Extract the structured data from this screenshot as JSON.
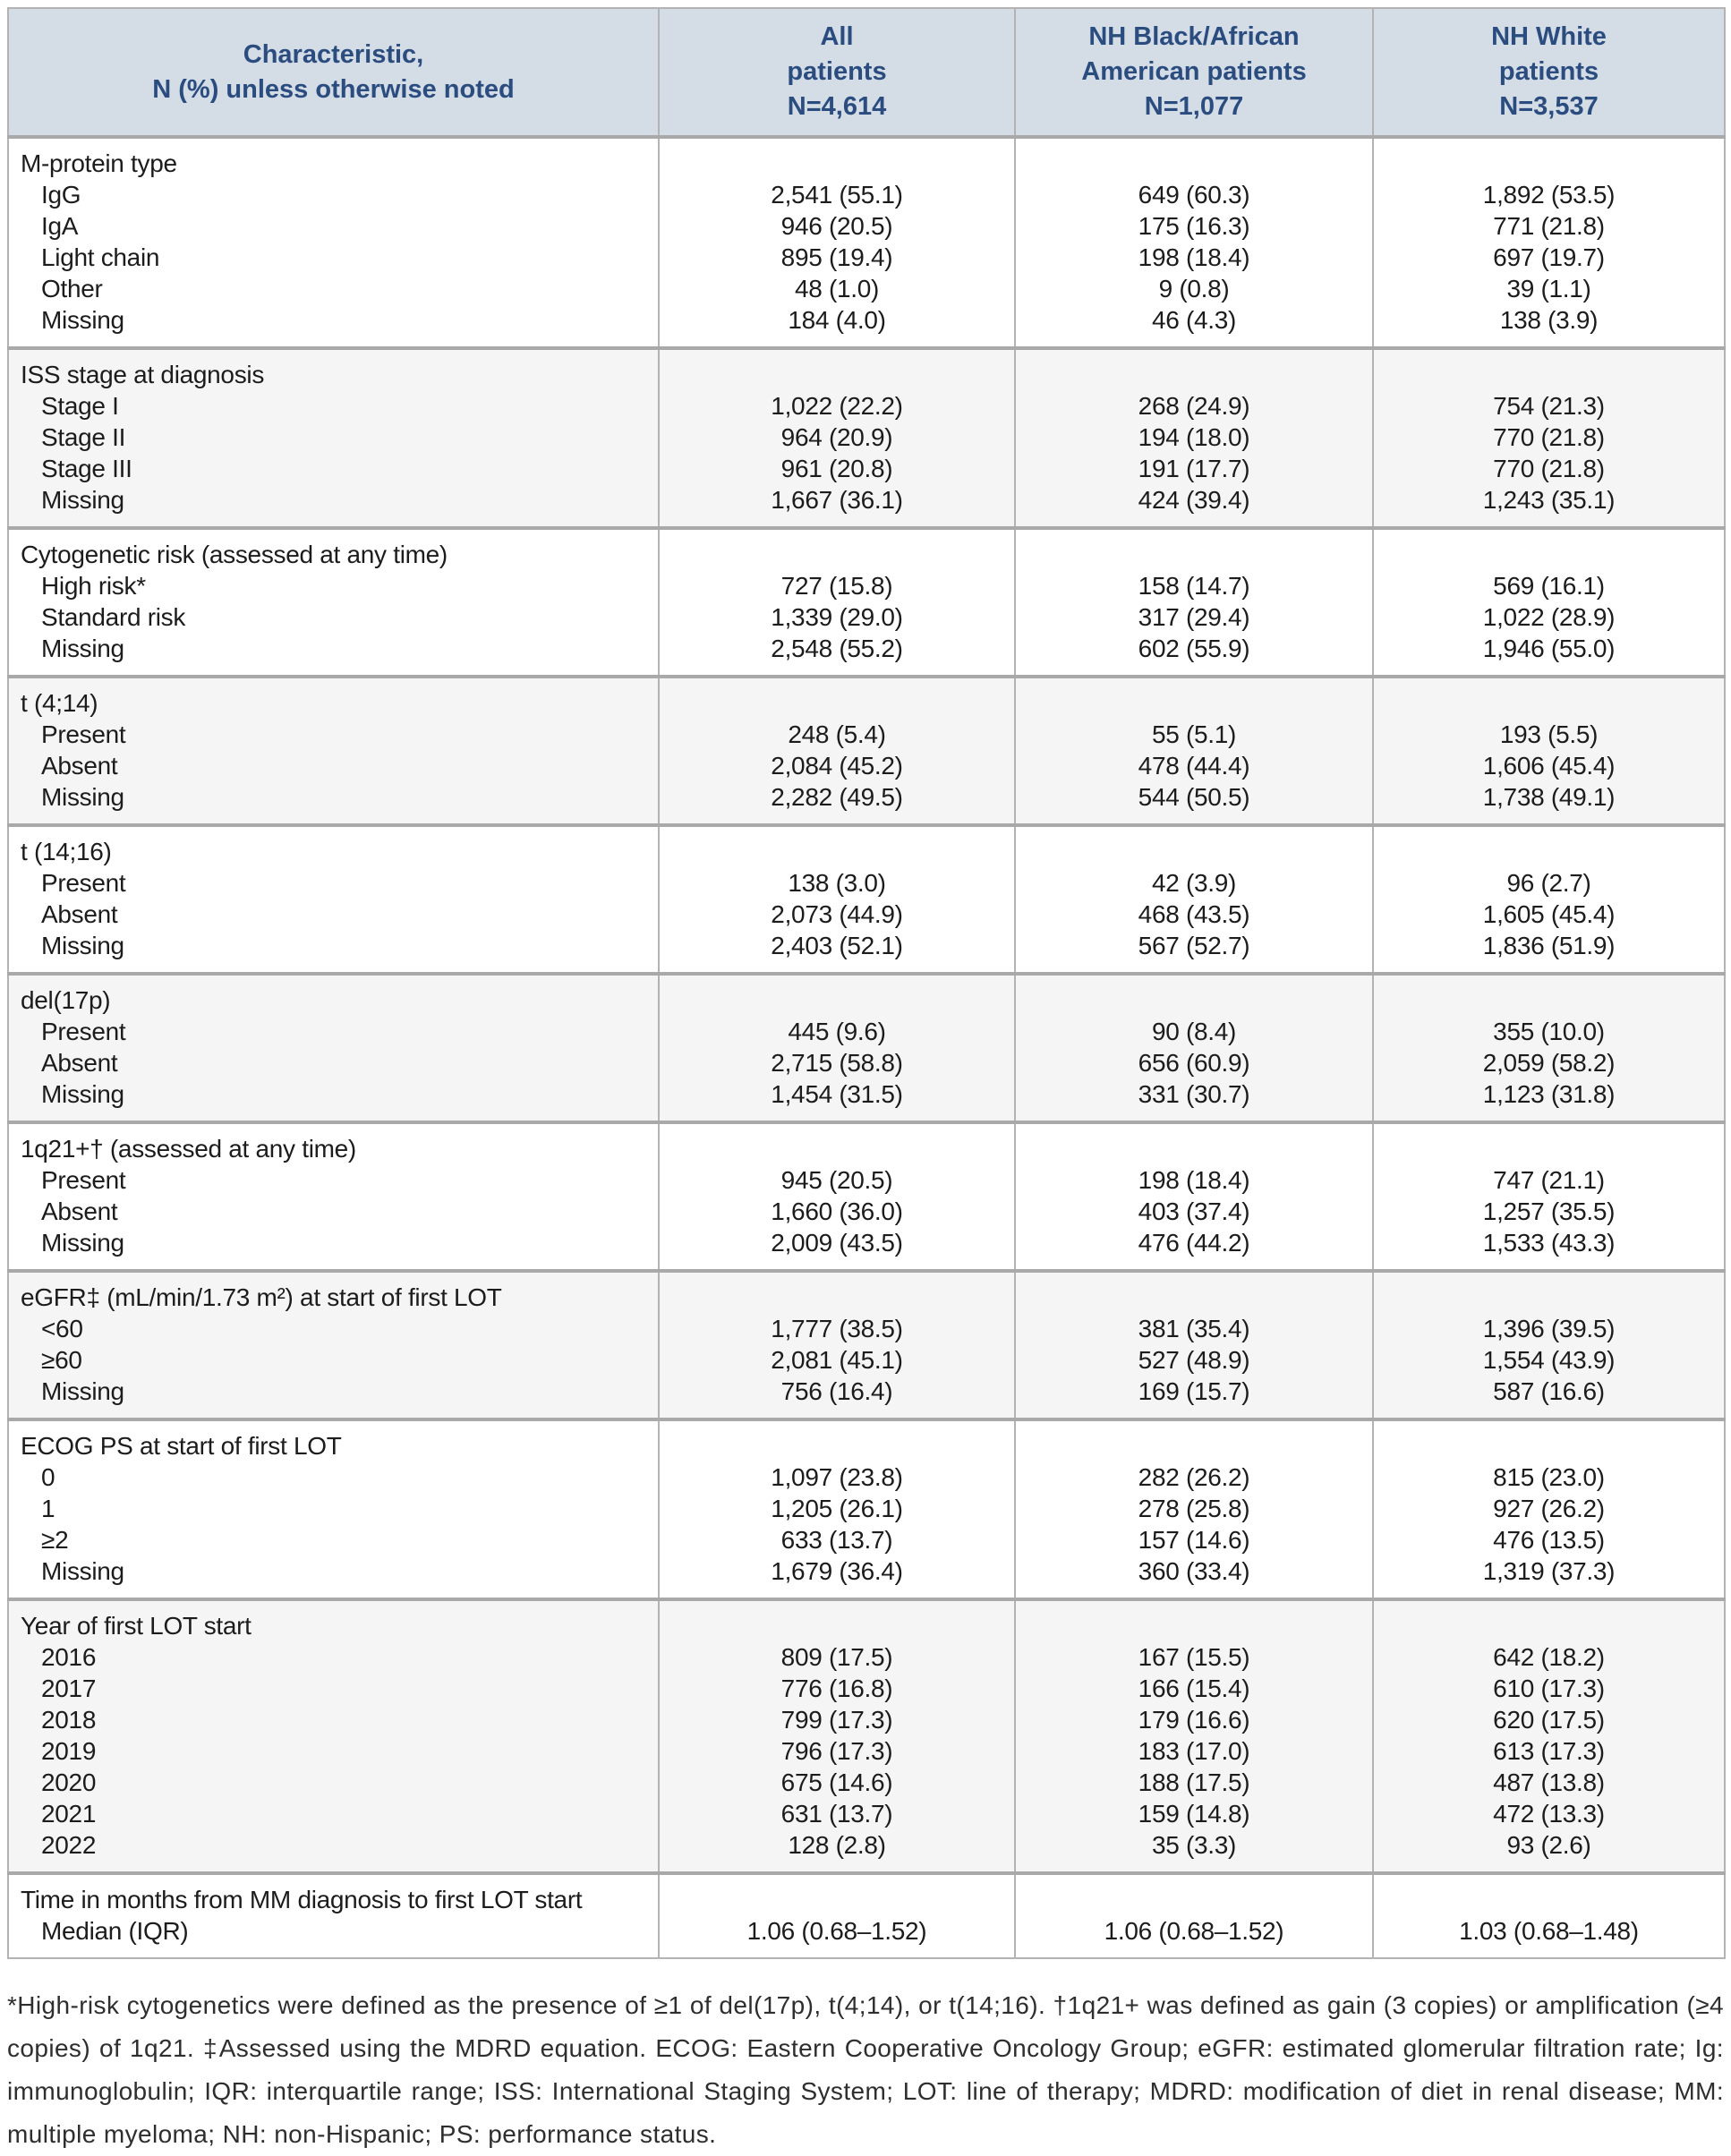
{
  "theme": {
    "header_bg": "#d4dce6",
    "header_text": "#2a4c7f",
    "alt_bg": "#f5f5f5",
    "border": "#b3b3b3",
    "rule": "#a9a9a9",
    "text": "#1c1c1c",
    "footnote_text": "#2e2e2e"
  },
  "header": {
    "characteristic": [
      "Characteristic,",
      "N (%) unless otherwise noted"
    ],
    "groups": [
      {
        "lines": [
          "All",
          "patients",
          "N=4,614"
        ]
      },
      {
        "lines": [
          "NH Black/African",
          "American patients",
          "N=1,077"
        ]
      },
      {
        "lines": [
          "NH White",
          "patients",
          "N=3,537"
        ]
      }
    ]
  },
  "sections": [
    {
      "title": "M-protein type",
      "rows": [
        {
          "label": "IgG",
          "values": [
            "2,541 (55.1)",
            "649 (60.3)",
            "1,892 (53.5)"
          ]
        },
        {
          "label": "IgA",
          "values": [
            "946 (20.5)",
            "175 (16.3)",
            "771 (21.8)"
          ]
        },
        {
          "label": "Light chain",
          "values": [
            "895 (19.4)",
            "198 (18.4)",
            "697 (19.7)"
          ]
        },
        {
          "label": "Other",
          "values": [
            "48 (1.0)",
            "9 (0.8)",
            "39 (1.1)"
          ]
        },
        {
          "label": "Missing",
          "values": [
            "184 (4.0)",
            "46 (4.3)",
            "138 (3.9)"
          ]
        }
      ]
    },
    {
      "title": "ISS stage at diagnosis",
      "rows": [
        {
          "label": "Stage I",
          "values": [
            "1,022 (22.2)",
            "268 (24.9)",
            "754 (21.3)"
          ]
        },
        {
          "label": "Stage II",
          "values": [
            "964 (20.9)",
            "194 (18.0)",
            "770 (21.8)"
          ]
        },
        {
          "label": "Stage III",
          "values": [
            "961 (20.8)",
            "191 (17.7)",
            "770 (21.8)"
          ]
        },
        {
          "label": "Missing",
          "values": [
            "1,667 (36.1)",
            "424 (39.4)",
            "1,243 (35.1)"
          ]
        }
      ]
    },
    {
      "title": "Cytogenetic risk (assessed at any time)",
      "rows": [
        {
          "label": "High risk*",
          "values": [
            "727 (15.8)",
            "158 (14.7)",
            "569 (16.1)"
          ]
        },
        {
          "label": "Standard risk",
          "values": [
            "1,339 (29.0)",
            "317 (29.4)",
            "1,022 (28.9)"
          ]
        },
        {
          "label": "Missing",
          "values": [
            "2,548 (55.2)",
            "602 (55.9)",
            "1,946 (55.0)"
          ]
        }
      ]
    },
    {
      "title": "t (4;14)",
      "rows": [
        {
          "label": "Present",
          "values": [
            "248 (5.4)",
            "55 (5.1)",
            "193 (5.5)"
          ]
        },
        {
          "label": "Absent",
          "values": [
            "2,084 (45.2)",
            "478 (44.4)",
            "1,606 (45.4)"
          ]
        },
        {
          "label": "Missing",
          "values": [
            "2,282 (49.5)",
            "544 (50.5)",
            "1,738 (49.1)"
          ]
        }
      ]
    },
    {
      "title": "t (14;16)",
      "rows": [
        {
          "label": "Present",
          "values": [
            "138 (3.0)",
            "42 (3.9)",
            "96 (2.7)"
          ]
        },
        {
          "label": "Absent",
          "values": [
            "2,073 (44.9)",
            "468 (43.5)",
            "1,605 (45.4)"
          ]
        },
        {
          "label": "Missing",
          "values": [
            "2,403 (52.1)",
            "567 (52.7)",
            "1,836 (51.9)"
          ]
        }
      ]
    },
    {
      "title": "del(17p)",
      "rows": [
        {
          "label": "Present",
          "values": [
            "445 (9.6)",
            "90 (8.4)",
            "355 (10.0)"
          ]
        },
        {
          "label": "Absent",
          "values": [
            "2,715 (58.8)",
            "656 (60.9)",
            "2,059 (58.2)"
          ]
        },
        {
          "label": "Missing",
          "values": [
            "1,454 (31.5)",
            "331 (30.7)",
            "1,123 (31.8)"
          ]
        }
      ]
    },
    {
      "title": "1q21+† (assessed at any time)",
      "rows": [
        {
          "label": "Present",
          "values": [
            "945 (20.5)",
            "198 (18.4)",
            "747 (21.1)"
          ]
        },
        {
          "label": "Absent",
          "values": [
            "1,660 (36.0)",
            "403 (37.4)",
            "1,257 (35.5)"
          ]
        },
        {
          "label": "Missing",
          "values": [
            "2,009 (43.5)",
            "476 (44.2)",
            "1,533 (43.3)"
          ]
        }
      ]
    },
    {
      "title": "eGFR‡ (mL/min/1.73 m²) at start of first LOT",
      "rows": [
        {
          "label": "<60",
          "values": [
            "1,777 (38.5)",
            "381 (35.4)",
            "1,396 (39.5)"
          ]
        },
        {
          "label": "≥60",
          "values": [
            "2,081 (45.1)",
            "527 (48.9)",
            "1,554 (43.9)"
          ]
        },
        {
          "label": "Missing",
          "values": [
            "756 (16.4)",
            "169 (15.7)",
            "587 (16.6)"
          ]
        }
      ]
    },
    {
      "title": "ECOG PS at start of first LOT",
      "rows": [
        {
          "label": "0",
          "values": [
            "1,097 (23.8)",
            "282 (26.2)",
            "815 (23.0)"
          ]
        },
        {
          "label": "1",
          "values": [
            "1,205 (26.1)",
            "278 (25.8)",
            "927 (26.2)"
          ]
        },
        {
          "label": "≥2",
          "values": [
            "633 (13.7)",
            "157 (14.6)",
            "476 (13.5)"
          ]
        },
        {
          "label": "Missing",
          "values": [
            "1,679 (36.4)",
            "360 (33.4)",
            "1,319 (37.3)"
          ]
        }
      ]
    },
    {
      "title": "Year of first LOT start",
      "rows": [
        {
          "label": "2016",
          "values": [
            "809 (17.5)",
            "167 (15.5)",
            "642 (18.2)"
          ]
        },
        {
          "label": "2017",
          "values": [
            "776 (16.8)",
            "166 (15.4)",
            "610 (17.3)"
          ]
        },
        {
          "label": "2018",
          "values": [
            "799 (17.3)",
            "179 (16.6)",
            "620 (17.5)"
          ]
        },
        {
          "label": "2019",
          "values": [
            "796 (17.3)",
            "183 (17.0)",
            "613 (17.3)"
          ]
        },
        {
          "label": "2020",
          "values": [
            "675 (14.6)",
            "188 (17.5)",
            "487 (13.8)"
          ]
        },
        {
          "label": "2021",
          "values": [
            "631 (13.7)",
            "159 (14.8)",
            "472 (13.3)"
          ]
        },
        {
          "label": "2022",
          "values": [
            "128 (2.8)",
            "35 (3.3)",
            "93 (2.6)"
          ]
        }
      ]
    },
    {
      "title": "Time in months from MM diagnosis to first LOT start",
      "rows": [
        {
          "label": "Median (IQR)",
          "values": [
            "1.06 (0.68–1.52)",
            "1.06 (0.68–1.52)",
            "1.03 (0.68–1.48)"
          ]
        }
      ]
    }
  ],
  "footnote": "*High-risk cytogenetics were defined as the presence of ≥1 of del(17p), t(4;14), or t(14;16). †1q21+ was defined as gain (3 copies) or amplification (≥4 copies) of 1q21. ‡Assessed using the MDRD equation. ECOG: Eastern Cooperative Oncology Group; eGFR: estimated glomerular filtration rate; Ig: immunoglobulin; IQR: interquartile range; ISS: International Staging System; LOT: line of therapy; MDRD: modification of diet in renal disease; MM: multiple myeloma; NH: non-Hispanic; PS: performance status."
}
